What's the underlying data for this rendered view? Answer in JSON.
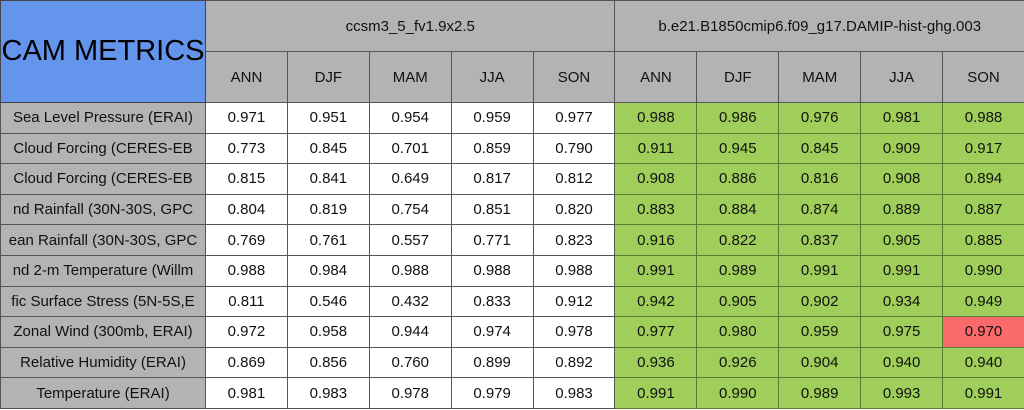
{
  "title": "CAM METRICS",
  "colors": {
    "title": "#6495ed",
    "header": "#b3b3b3",
    "better": "#9fce5a",
    "worse": "#fb6b6b"
  },
  "models": [
    "ccsm3_5_fv1.9x2.5",
    "b.e21.B1850cmip6.f09_g17.DAMIP-hist-ghg.003"
  ],
  "seasons": [
    "ANN",
    "DJF",
    "MAM",
    "JJA",
    "SON"
  ],
  "rows": [
    {
      "label": "Sea Level Pressure (ERAI)",
      "a": [
        "0.971",
        "0.951",
        "0.954",
        "0.959",
        "0.977"
      ],
      "b": [
        "0.988",
        "0.986",
        "0.976",
        "0.981",
        "0.988"
      ],
      "flag": [
        "g",
        "g",
        "g",
        "g",
        "g"
      ]
    },
    {
      "label": "Cloud Forcing (CERES-EB",
      "a": [
        "0.773",
        "0.845",
        "0.701",
        "0.859",
        "0.790"
      ],
      "b": [
        "0.911",
        "0.945",
        "0.845",
        "0.909",
        "0.917"
      ],
      "flag": [
        "g",
        "g",
        "g",
        "g",
        "g"
      ]
    },
    {
      "label": "Cloud Forcing (CERES-EB",
      "a": [
        "0.815",
        "0.841",
        "0.649",
        "0.817",
        "0.812"
      ],
      "b": [
        "0.908",
        "0.886",
        "0.816",
        "0.908",
        "0.894"
      ],
      "flag": [
        "g",
        "g",
        "g",
        "g",
        "g"
      ]
    },
    {
      "label": "nd Rainfall (30N-30S, GPC",
      "a": [
        "0.804",
        "0.819",
        "0.754",
        "0.851",
        "0.820"
      ],
      "b": [
        "0.883",
        "0.884",
        "0.874",
        "0.889",
        "0.887"
      ],
      "flag": [
        "g",
        "g",
        "g",
        "g",
        "g"
      ]
    },
    {
      "label": "ean Rainfall (30N-30S, GPC",
      "a": [
        "0.769",
        "0.761",
        "0.557",
        "0.771",
        "0.823"
      ],
      "b": [
        "0.916",
        "0.822",
        "0.837",
        "0.905",
        "0.885"
      ],
      "flag": [
        "g",
        "g",
        "g",
        "g",
        "g"
      ]
    },
    {
      "label": "nd 2-m Temperature (Willm",
      "a": [
        "0.988",
        "0.984",
        "0.988",
        "0.988",
        "0.988"
      ],
      "b": [
        "0.991",
        "0.989",
        "0.991",
        "0.991",
        "0.990"
      ],
      "flag": [
        "g",
        "g",
        "g",
        "g",
        "g"
      ]
    },
    {
      "label": "fic Surface Stress (5N-5S,E",
      "a": [
        "0.811",
        "0.546",
        "0.432",
        "0.833",
        "0.912"
      ],
      "b": [
        "0.942",
        "0.905",
        "0.902",
        "0.934",
        "0.949"
      ],
      "flag": [
        "g",
        "g",
        "g",
        "g",
        "g"
      ]
    },
    {
      "label": "Zonal Wind (300mb, ERAI)",
      "a": [
        "0.972",
        "0.958",
        "0.944",
        "0.974",
        "0.978"
      ],
      "b": [
        "0.977",
        "0.980",
        "0.959",
        "0.975",
        "0.970"
      ],
      "flag": [
        "g",
        "g",
        "g",
        "g",
        "r"
      ]
    },
    {
      "label": "Relative Humidity (ERAI)",
      "a": [
        "0.869",
        "0.856",
        "0.760",
        "0.899",
        "0.892"
      ],
      "b": [
        "0.936",
        "0.926",
        "0.904",
        "0.940",
        "0.940"
      ],
      "flag": [
        "g",
        "g",
        "g",
        "g",
        "g"
      ]
    },
    {
      "label": "Temperature (ERAI)",
      "a": [
        "0.981",
        "0.983",
        "0.978",
        "0.979",
        "0.983"
      ],
      "b": [
        "0.991",
        "0.990",
        "0.989",
        "0.993",
        "0.991"
      ],
      "flag": [
        "g",
        "g",
        "g",
        "g",
        "g"
      ]
    }
  ]
}
